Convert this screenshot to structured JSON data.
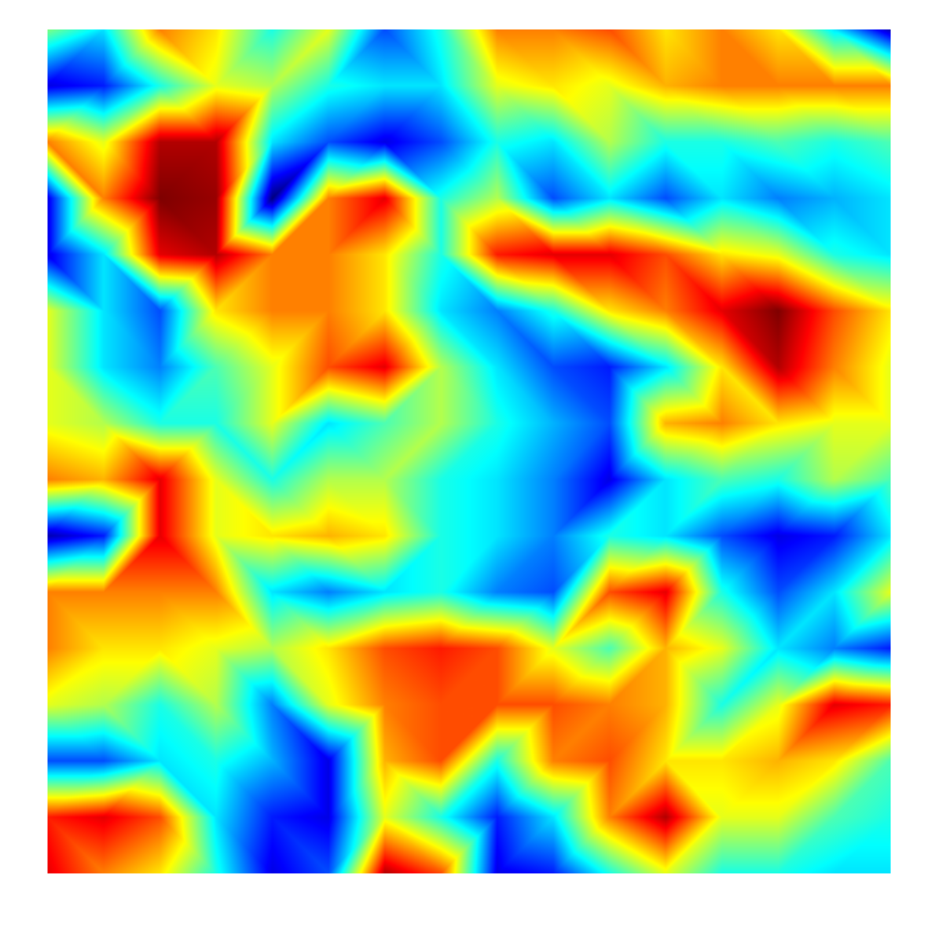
{
  "chart_data": {
    "type": "heatmap",
    "tick_labels": false,
    "cells": [
      [
        0.0,
        -0.3,
        0.5,
        0.3,
        -0.2,
        0.2,
        -0.6,
        -0.2,
        0.5,
        0.5,
        0.6,
        0.3,
        0.5,
        0.3,
        -0.3,
        -0.9
      ],
      [
        -0.8,
        -0.7,
        -0.2,
        0.2,
        0.1,
        -0.2,
        -0.3,
        -0.3,
        0.2,
        0.3,
        0.2,
        0.4,
        0.5,
        0.5,
        0.5,
        0.5
      ],
      [
        0.5,
        0.2,
        0.9,
        0.9,
        -0.3,
        -0.6,
        -0.8,
        -0.6,
        -0.2,
        -0.3,
        0.1,
        -0.2,
        -0.2,
        -0.1,
        -0.2,
        -0.1
      ],
      [
        -0.8,
        0.5,
        1.0,
        0.95,
        -1.0,
        0.5,
        0.8,
        -0.2,
        0.1,
        -0.6,
        -0.3,
        -0.6,
        -0.3,
        -0.5,
        -0.4,
        -0.3
      ],
      [
        -0.8,
        -0.3,
        0.8,
        0.9,
        0.5,
        0.5,
        0.3,
        -0.2,
        0.7,
        0.8,
        0.8,
        0.6,
        0.3,
        0.2,
        -0.2,
        -0.3
      ],
      [
        0.2,
        -0.3,
        -0.6,
        0.3,
        0.5,
        0.5,
        0.3,
        -0.3,
        -0.5,
        -0.2,
        0.3,
        0.5,
        0.8,
        1.0,
        0.6,
        0.3
      ],
      [
        0.2,
        -0.3,
        -0.5,
        -0.1,
        0.2,
        0.6,
        0.8,
        0.1,
        -0.3,
        -0.6,
        -0.7,
        -0.3,
        0.3,
        0.9,
        0.5,
        0.2
      ],
      [
        0.2,
        0.1,
        -0.2,
        -0.2,
        0.2,
        -0.3,
        -0.1,
        0.1,
        -0.2,
        -0.4,
        -0.6,
        0.4,
        0.5,
        0.3,
        0.2,
        0.2
      ],
      [
        0.5,
        0.4,
        0.8,
        0.2,
        -0.2,
        0.1,
        0.1,
        -0.2,
        -0.3,
        -0.5,
        -0.8,
        -0.3,
        -0.1,
        -0.2,
        0.1,
        -0.1
      ],
      [
        -0.9,
        -0.7,
        0.8,
        0.2,
        0.3,
        0.4,
        0.3,
        -0.2,
        -0.3,
        -0.5,
        -0.2,
        -0.3,
        -0.6,
        -0.8,
        -0.7,
        -0.3
      ],
      [
        0.5,
        0.5,
        0.5,
        0.5,
        -0.3,
        -0.5,
        -0.3,
        -0.2,
        -0.5,
        -0.6,
        0.6,
        0.8,
        -0.2,
        -0.6,
        -0.3,
        0.2
      ],
      [
        0.5,
        0.3,
        0.3,
        0.2,
        0.1,
        0.3,
        0.6,
        0.7,
        0.6,
        0.2,
        -0.1,
        0.4,
        0.2,
        -0.3,
        -0.5,
        -0.7
      ],
      [
        0.2,
        0.1,
        -0.2,
        0.1,
        -0.5,
        0.2,
        0.5,
        0.6,
        0.6,
        0.6,
        0.5,
        0.4,
        -0.2,
        0.2,
        0.8,
        0.7
      ],
      [
        -0.6,
        -0.6,
        -0.3,
        -0.2,
        -0.4,
        -0.8,
        0.4,
        0.6,
        -0.2,
        0.5,
        0.6,
        0.3,
        0.3,
        0.4,
        0.3,
        -0.1
      ],
      [
        0.7,
        0.8,
        0.6,
        -0.3,
        -0.7,
        -0.8,
        0.2,
        -0.2,
        -0.7,
        -0.3,
        0.5,
        0.9,
        0.2,
        0.2,
        -0.1,
        -0.2
      ],
      [
        0.8,
        0.5,
        0.3,
        -0.2,
        -0.8,
        -0.6,
        0.9,
        0.6,
        -0.8,
        -0.7,
        -0.2,
        0.2,
        -0.2,
        -0.2,
        -0.3,
        -0.3
      ]
    ]
  }
}
